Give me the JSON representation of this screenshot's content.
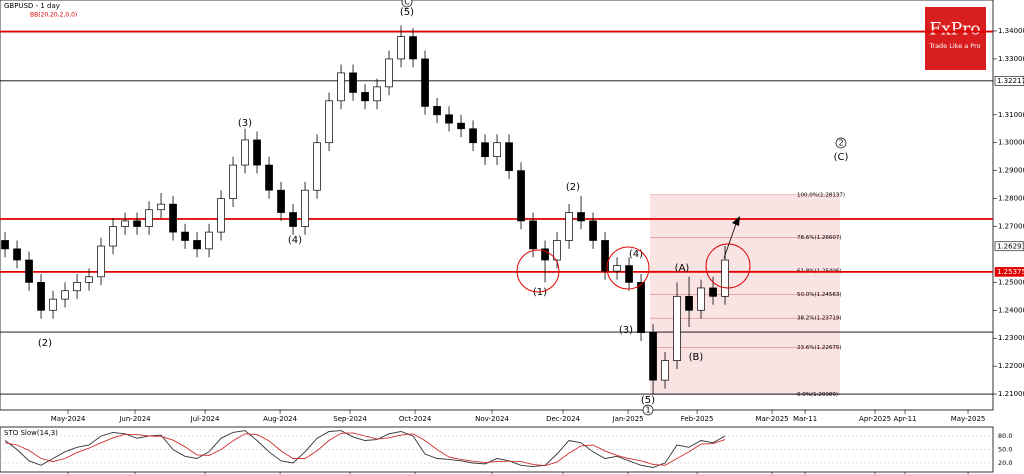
{
  "header": {
    "symbol_title": "GBPUSD - 1 day",
    "indicator": "BB(20,20,2,0,0)"
  },
  "logo": {
    "brand": "FxPro",
    "tagline": "Trade Like a Pro"
  },
  "chart_data": [
    {
      "type": "candlestick",
      "open": [
        1.265,
        1.262,
        1.258,
        1.25,
        1.24,
        1.244,
        1.247,
        1.25,
        1.252,
        1.263,
        1.27,
        1.272,
        1.27,
        1.276,
        1.278,
        1.268,
        1.265,
        1.262,
        1.268,
        1.28,
        1.292,
        1.301,
        1.292,
        1.283,
        1.275,
        1.27,
        1.283,
        1.3,
        1.315,
        1.325,
        1.318,
        1.315,
        1.32,
        1.33,
        1.338,
        1.33,
        1.313,
        1.31,
        1.307,
        1.305,
        1.3,
        1.295,
        1.3,
        1.29,
        1.272,
        1.262,
        1.258,
        1.265,
        1.275,
        1.272,
        1.265,
        1.254,
        1.256,
        1.25,
        1.232,
        1.215,
        1.222,
        1.245,
        1.24,
        1.248,
        1.245
      ],
      "high": [
        1.268,
        1.265,
        1.261,
        1.253,
        1.247,
        1.25,
        1.253,
        1.255,
        1.266,
        1.273,
        1.275,
        1.275,
        1.279,
        1.282,
        1.281,
        1.271,
        1.268,
        1.271,
        1.283,
        1.295,
        1.305,
        1.304,
        1.295,
        1.286,
        1.278,
        1.286,
        1.303,
        1.318,
        1.328,
        1.328,
        1.321,
        1.323,
        1.333,
        1.342,
        1.341,
        1.333,
        1.316,
        1.313,
        1.31,
        1.308,
        1.303,
        1.303,
        1.303,
        1.293,
        1.275,
        1.265,
        1.268,
        1.278,
        1.281,
        1.275,
        1.268,
        1.259,
        1.259,
        1.253,
        1.235,
        1.225,
        1.25,
        1.252,
        1.251,
        1.252,
        1.263
      ],
      "low": [
        1.259,
        1.255,
        1.247,
        1.237,
        1.237,
        1.241,
        1.244,
        1.247,
        1.249,
        1.26,
        1.267,
        1.267,
        1.267,
        1.273,
        1.265,
        1.262,
        1.259,
        1.259,
        1.265,
        1.277,
        1.289,
        1.289,
        1.28,
        1.272,
        1.267,
        1.267,
        1.28,
        1.297,
        1.312,
        1.315,
        1.312,
        1.312,
        1.317,
        1.327,
        1.327,
        1.31,
        1.307,
        1.304,
        1.302,
        1.297,
        1.292,
        1.292,
        1.287,
        1.269,
        1.259,
        1.25,
        1.255,
        1.262,
        1.269,
        1.262,
        1.251,
        1.251,
        1.247,
        1.229,
        1.21,
        1.212,
        1.219,
        1.234,
        1.237,
        1.242,
        1.242
      ],
      "close": [
        1.262,
        1.258,
        1.25,
        1.24,
        1.244,
        1.247,
        1.25,
        1.252,
        1.263,
        1.27,
        1.272,
        1.27,
        1.276,
        1.278,
        1.268,
        1.265,
        1.262,
        1.268,
        1.28,
        1.292,
        1.301,
        1.292,
        1.283,
        1.275,
        1.27,
        1.283,
        1.3,
        1.315,
        1.325,
        1.318,
        1.315,
        1.32,
        1.33,
        1.338,
        1.33,
        1.313,
        1.31,
        1.307,
        1.305,
        1.3,
        1.295,
        1.3,
        1.29,
        1.272,
        1.262,
        1.258,
        1.265,
        1.275,
        1.272,
        1.265,
        1.254,
        1.256,
        1.25,
        1.232,
        1.215,
        1.222,
        1.245,
        1.24,
        1.248,
        1.245,
        1.258
      ],
      "up_color": "#ffffff",
      "down_color": "#000000",
      "ylim": [
        1.2043,
        1.3511
      ],
      "yticks": [
        {
          "value": 1.34,
          "label": "1.34000"
        },
        {
          "value": 1.33,
          "label": "1.33000"
        },
        {
          "value": 1.31,
          "label": "1.31000"
        },
        {
          "value": 1.3,
          "label": "1.30000"
        },
        {
          "value": 1.29,
          "label": "1.29000"
        },
        {
          "value": 1.28,
          "label": "1.28000"
        },
        {
          "value": 1.27,
          "label": "1.27000"
        },
        {
          "value": 1.25,
          "label": "1.25000"
        },
        {
          "value": 1.24,
          "label": "1.24000"
        },
        {
          "value": 1.23,
          "label": "1.23000"
        },
        {
          "value": 1.22,
          "label": "1.22000"
        },
        {
          "value": 1.21,
          "label": "1.21000"
        }
      ],
      "price_labels": [
        {
          "value": 1.32217,
          "label": "1.32217",
          "color": "#ffffff"
        },
        {
          "value": 1.26293,
          "label": "1.26293",
          "color": "#ffffff"
        },
        {
          "value": 1.25375,
          "label": "1.25375",
          "color": "#e00000"
        }
      ],
      "xlim": [
        -0.42,
        82.33
      ],
      "xticks": [
        {
          "value": 5.25,
          "label": "May-2024"
        },
        {
          "value": 10.83,
          "label": "Jun-2024"
        },
        {
          "value": 16.67,
          "label": "Jul-2024"
        },
        {
          "value": 22.92,
          "label": "Aug-2024"
        },
        {
          "value": 28.75,
          "label": "Sep-2024"
        },
        {
          "value": 34.17,
          "label": "Oct-2024"
        },
        {
          "value": 40.58,
          "label": "Nov-2024"
        },
        {
          "value": 46.5,
          "label": "Dec-2024"
        },
        {
          "value": 51.92,
          "label": "Jan-2025"
        },
        {
          "value": 57.67,
          "label": "Feb-2025"
        },
        {
          "value": 63.92,
          "label": "Mar-2025"
        },
        {
          "value": 66.67,
          "label": "Mar-11"
        },
        {
          "value": 72.5,
          "label": "Apr-2025"
        },
        {
          "value": 75,
          "label": "Apr-11"
        },
        {
          "value": 80.25,
          "label": "May-2025"
        }
      ],
      "levels": [
        {
          "value": 1.3398,
          "color": "#e00000"
        },
        {
          "value": 1.2727,
          "color": "#e00000"
        },
        {
          "value": 1.25375,
          "color": "#e00000"
        },
        {
          "value": 1.32217,
          "color": "#000000"
        },
        {
          "value": 1.2322,
          "color": "#000000"
        },
        {
          "value": 1.21,
          "color": "#000000"
        }
      ],
      "fib_levels": [
        {
          "value": 1.28137,
          "label": "100.0%(1.28137)"
        },
        {
          "value": 1.26607,
          "label": "78.6%(1.26607)"
        },
        {
          "value": 1.25406,
          "label": "61.8%(1.25406)"
        },
        {
          "value": 1.24563,
          "label": "50.0%(1.24563)"
        },
        {
          "value": 1.23719,
          "label": "38.2%(1.23719)"
        },
        {
          "value": 1.22675,
          "label": "23.6%(1.22675)"
        },
        {
          "value": 1.20989,
          "label": "0.0%(1.20989)"
        }
      ],
      "wave_labels": [
        "(2)",
        "(3)",
        "(4)",
        "(5)",
        "C",
        "(1)",
        "(2)",
        "(4)",
        "(3)",
        "(5)",
        "1",
        "(A)",
        "(B)",
        "2",
        "(C)"
      ]
    },
    {
      "type": "line",
      "title": "STO Slow(14,3)",
      "ylim": [
        0,
        100
      ],
      "yticks": [
        {
          "value": 80,
          "label": "80.0"
        },
        {
          "value": 50,
          "label": "50.0"
        },
        {
          "value": 20,
          "label": "20.0"
        }
      ],
      "series": [
        {
          "color": "#333333",
          "values": [
            70,
            50,
            25,
            15,
            30,
            45,
            55,
            60,
            80,
            88,
            85,
            75,
            80,
            82,
            50,
            35,
            30,
            45,
            75,
            88,
            92,
            70,
            45,
            25,
            20,
            45,
            75,
            90,
            92,
            78,
            70,
            72,
            85,
            90,
            80,
            40,
            30,
            28,
            25,
            20,
            18,
            30,
            25,
            15,
            12,
            15,
            40,
            70,
            65,
            45,
            30,
            35,
            25,
            15,
            10,
            20,
            60,
            55,
            70,
            65,
            80
          ]
        },
        {
          "color": "#d03030",
          "values": [
            65,
            60,
            48,
            30,
            23,
            30,
            43,
            53,
            65,
            76,
            84,
            83,
            80,
            79,
            71,
            56,
            38,
            37,
            50,
            69,
            85,
            83,
            69,
            47,
            30,
            30,
            47,
            70,
            86,
            87,
            80,
            73,
            76,
            82,
            85,
            70,
            50,
            33,
            28,
            24,
            21,
            23,
            24,
            23,
            17,
            14,
            22,
            42,
            58,
            60,
            47,
            37,
            30,
            25,
            17,
            15,
            30,
            45,
            62,
            63,
            72
          ]
        }
      ]
    }
  ]
}
